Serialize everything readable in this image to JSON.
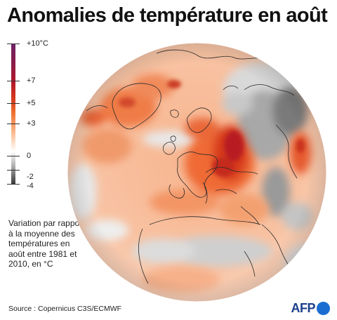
{
  "title": "Anomalies de température en août",
  "legend": {
    "ticks": [
      {
        "label": "+10°C",
        "value": 10
      },
      {
        "label": "+7",
        "value": 7
      },
      {
        "label": "+5",
        "value": 5
      },
      {
        "label": "+3",
        "value": 3
      },
      {
        "label": "0",
        "value": 0
      },
      {
        "label": "-2",
        "value": -2
      },
      {
        "label": "-4",
        "value": -4
      }
    ],
    "colors": {
      "max": "#6e2468",
      "high": "#b0182b",
      "mid": "#ee6e2e",
      "low_warm": "#fcdcc4",
      "zero": "#ffffff",
      "cool": "#a9a9a9",
      "min": "#3a3a3a"
    }
  },
  "note": "Variation par rapport à la moyenne des températures en août entre 1981 et 2010, en °C",
  "source": "Source : Copernicus C3S/ECMWF",
  "logo": {
    "text": "AFP"
  },
  "map": {
    "projection": "orthographic globe centered on Europe",
    "hotspots": [
      "Greenland",
      "western Russia",
      "Scandinavia",
      "North Atlantic",
      "Mediterranean basin"
    ],
    "coolspots": [
      "Siberia",
      "northern Africa",
      "Arctic Ocean"
    ]
  }
}
